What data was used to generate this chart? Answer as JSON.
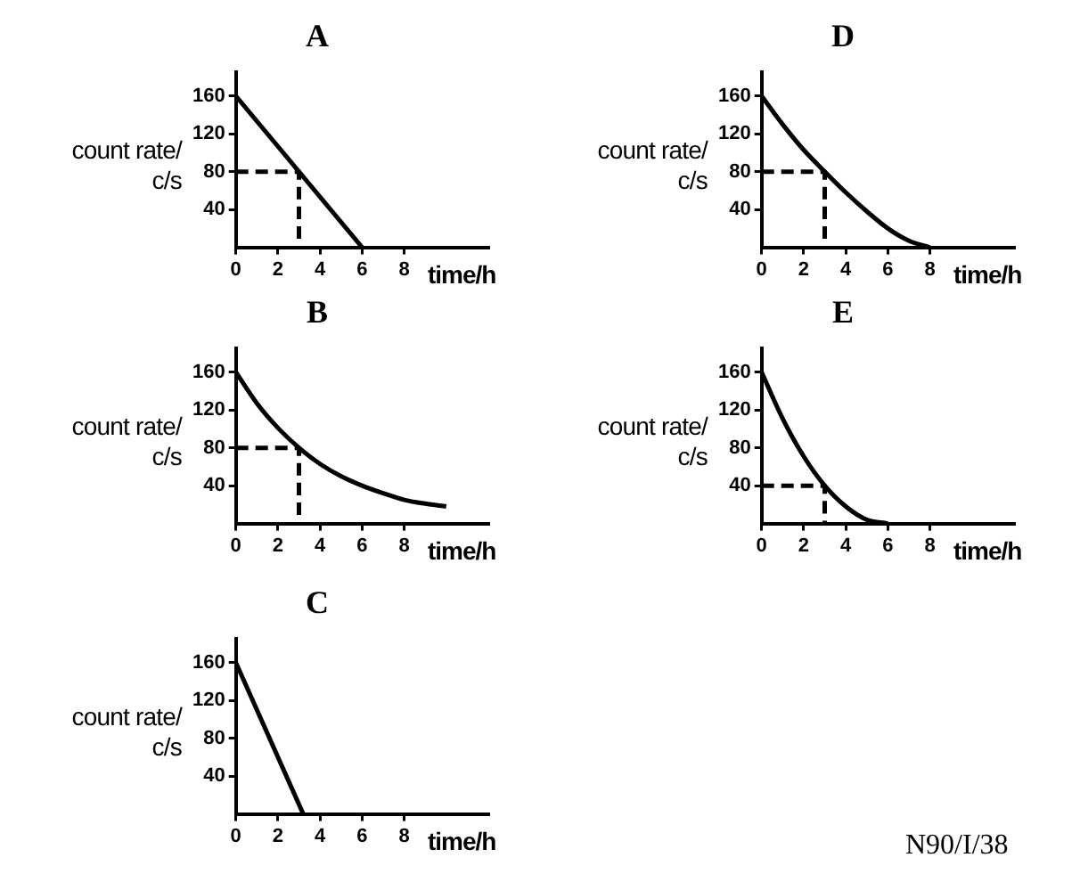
{
  "chart_data": [
    {
      "type": "line",
      "title": "A",
      "xlabel": "time/h",
      "ylabel": "count rate/ c/s",
      "marker": "none",
      "xlim": [
        0,
        12
      ],
      "ylim": [
        0,
        185
      ],
      "xticks": [
        0,
        2,
        4,
        6,
        8
      ],
      "yticks": [
        40,
        80,
        120,
        160
      ],
      "series": [
        {
          "color": "#000000",
          "x": [
            0,
            6
          ],
          "values": [
            160,
            0
          ]
        },
        {
          "color": "#000000",
          "line_style": "dashed",
          "x": [
            0,
            3,
            3
          ],
          "values": [
            80,
            80,
            0
          ]
        }
      ]
    },
    {
      "type": "line",
      "title": "D",
      "xlabel": "time/h",
      "ylabel": "count rate/ c/s",
      "marker": "none",
      "xlim": [
        0,
        12
      ],
      "ylim": [
        0,
        185
      ],
      "xticks": [
        0,
        2,
        4,
        6,
        8
      ],
      "yticks": [
        40,
        80,
        120,
        160
      ],
      "series": [
        {
          "color": "#000000",
          "x": [
            0,
            1,
            2,
            3,
            4,
            5,
            6,
            7,
            8
          ],
          "values": [
            160,
            130,
            103,
            80,
            58,
            38,
            20,
            7,
            0
          ]
        },
        {
          "color": "#000000",
          "line_style": "dashed",
          "x": [
            0,
            3,
            3
          ],
          "values": [
            80,
            80,
            0
          ]
        }
      ]
    },
    {
      "type": "line",
      "title": "B",
      "xlabel": "time/h",
      "ylabel": "count rate/ c/s",
      "marker": "none",
      "xlim": [
        0,
        12
      ],
      "ylim": [
        0,
        185
      ],
      "xticks": [
        0,
        2,
        4,
        6,
        8
      ],
      "yticks": [
        40,
        80,
        120,
        160
      ],
      "series": [
        {
          "color": "#000000",
          "x": [
            0,
            1,
            2,
            3,
            4,
            5,
            6,
            7,
            8,
            9,
            10
          ],
          "values": [
            160,
            127,
            101,
            80,
            63,
            50,
            40,
            32,
            25,
            21,
            18
          ]
        },
        {
          "color": "#000000",
          "line_style": "dashed",
          "x": [
            0,
            3,
            3
          ],
          "values": [
            80,
            80,
            0
          ]
        }
      ]
    },
    {
      "type": "line",
      "title": "E",
      "xlabel": "time/h",
      "ylabel": "count rate/ c/s",
      "marker": "none",
      "xlim": [
        0,
        12
      ],
      "ylim": [
        0,
        185
      ],
      "xticks": [
        0,
        2,
        4,
        6,
        8
      ],
      "yticks": [
        40,
        80,
        120,
        160
      ],
      "series": [
        {
          "color": "#000000",
          "x": [
            0,
            1,
            2,
            3,
            4,
            5,
            6
          ],
          "values": [
            160,
            111,
            71,
            40,
            18,
            4,
            0
          ]
        },
        {
          "color": "#000000",
          "line_style": "dashed",
          "x": [
            0,
            3,
            3
          ],
          "values": [
            40,
            40,
            0
          ]
        }
      ]
    },
    {
      "type": "line",
      "title": "C",
      "xlabel": "time/h",
      "ylabel": "count rate/ c/s",
      "marker": "none",
      "xlim": [
        0,
        12
      ],
      "ylim": [
        0,
        185
      ],
      "xticks": [
        0,
        2,
        4,
        6,
        8
      ],
      "yticks": [
        40,
        80,
        120,
        160
      ],
      "annotations": [
        "N90/I/38"
      ],
      "series": [
        {
          "color": "#000000",
          "x": [
            0,
            3.2
          ],
          "values": [
            160,
            0
          ]
        }
      ]
    }
  ]
}
